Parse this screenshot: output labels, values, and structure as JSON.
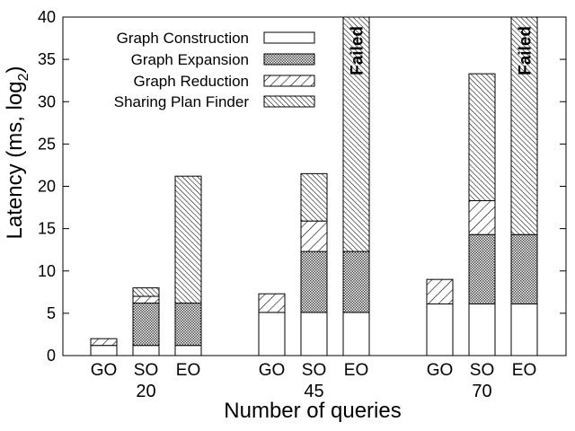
{
  "chart_data": {
    "type": "bar",
    "stacked": true,
    "title": "",
    "xlabel": "Number of queries",
    "ylabel": "Latency (ms, log",
    "ylabel_subscript": "2",
    "ylabel_close": ")",
    "ylim": [
      0,
      40
    ],
    "yticks": [
      0,
      5,
      10,
      15,
      20,
      25,
      30,
      35,
      40
    ],
    "grid": false,
    "legend_position": "top-left",
    "groups": [
      {
        "label": "20",
        "categories": [
          "GO",
          "SO",
          "EO"
        ]
      },
      {
        "label": "45",
        "categories": [
          "GO",
          "SO",
          "EO"
        ]
      },
      {
        "label": "70",
        "categories": [
          "GO",
          "SO",
          "EO"
        ]
      }
    ],
    "series": [
      {
        "name": "Graph Construction",
        "pattern": "empty",
        "values": [
          [
            1.2,
            1.2,
            1.2
          ],
          [
            5.1,
            5.1,
            5.1
          ],
          [
            6.1,
            6.1,
            6.1
          ]
        ]
      },
      {
        "name": "Graph Expansion",
        "pattern": "dots",
        "values": [
          [
            0,
            5.0,
            5.0
          ],
          [
            0,
            7.2,
            7.2
          ],
          [
            0,
            8.2,
            8.2
          ]
        ]
      },
      {
        "name": "Graph Reduction",
        "pattern": "hatch-light",
        "values": [
          [
            0.8,
            0.8,
            0
          ],
          [
            2.2,
            3.6,
            0
          ],
          [
            2.9,
            4.0,
            0
          ]
        ]
      },
      {
        "name": "Sharing Plan Finder",
        "pattern": "hatch-dense",
        "values": [
          [
            0,
            1.0,
            15.0
          ],
          [
            0,
            5.6,
            27.7
          ],
          [
            0,
            15.0,
            25.7
          ]
        ]
      }
    ],
    "failed": [
      {
        "group": 1,
        "bar": 2,
        "label": "Failed"
      },
      {
        "group": 2,
        "bar": 2,
        "label": "Failed"
      }
    ]
  },
  "colors": {
    "stroke": "#000000",
    "fill": "#ffffff",
    "dots": "#444444"
  }
}
